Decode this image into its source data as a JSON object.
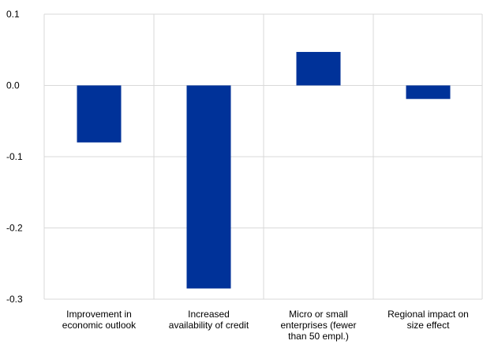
{
  "chart_data": {
    "type": "bar",
    "title": "",
    "xlabel": "",
    "ylabel": "",
    "categories": [
      [
        "Improvement in",
        "economic outlook"
      ],
      [
        "Increased",
        "availability of credit"
      ],
      [
        "Micro or small",
        "enterprises (fewer",
        "than 50 empl.)"
      ],
      [
        "Regional impact on",
        "size effect"
      ]
    ],
    "values": [
      -0.08,
      -0.285,
      0.047,
      -0.019
    ],
    "ylim": [
      -0.3,
      0.1
    ],
    "yticks": [
      0.1,
      0.0,
      -0.1,
      -0.2,
      -0.3
    ],
    "ytick_labels": [
      "0.1",
      "0.0",
      "-0.1",
      "-0.2",
      "-0.3"
    ],
    "bar_color": "#003299",
    "grid_color": "#d9d9d9",
    "grid": true,
    "legend": null
  }
}
